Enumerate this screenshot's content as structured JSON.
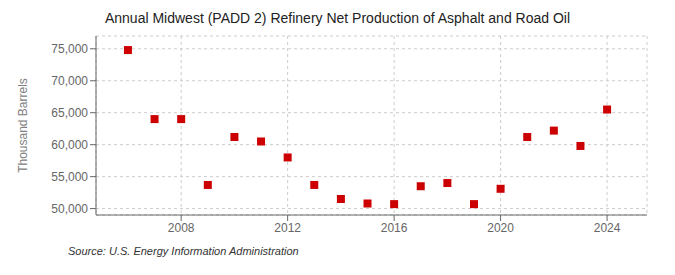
{
  "chart_data": {
    "type": "scatter",
    "title": "Annual Midwest (PADD 2) Refinery Net Production of Asphalt and Road Oil",
    "ylabel": "Thousand Barrels",
    "annotations": [
      "Source: U.S. Energy Information Administration"
    ],
    "x": [
      2006,
      2007,
      2008,
      2009,
      2010,
      2011,
      2012,
      2013,
      2014,
      2015,
      2016,
      2017,
      2018,
      2019,
      2020,
      2021,
      2022,
      2023,
      2024
    ],
    "values": [
      74800,
      64000,
      64000,
      53700,
      61200,
      60500,
      58000,
      53700,
      51500,
      50800,
      50700,
      53500,
      54000,
      50700,
      53100,
      61200,
      62200,
      59800,
      65500
    ],
    "xlim": [
      2004.8,
      2025.5
    ],
    "ylim": [
      49000,
      77000
    ],
    "xticks": [
      2008,
      2012,
      2016,
      2020,
      2024
    ],
    "yticks": [
      {
        "value": 50000,
        "label": "50,000"
      },
      {
        "value": 55000,
        "label": "55,000"
      },
      {
        "value": 60000,
        "label": "60,000"
      },
      {
        "value": 65000,
        "label": "65,000"
      },
      {
        "value": 70000,
        "label": "70,000"
      },
      {
        "value": 75000,
        "label": "75,000"
      }
    ],
    "grid": true,
    "color": "#cc0000",
    "marker": "square"
  }
}
